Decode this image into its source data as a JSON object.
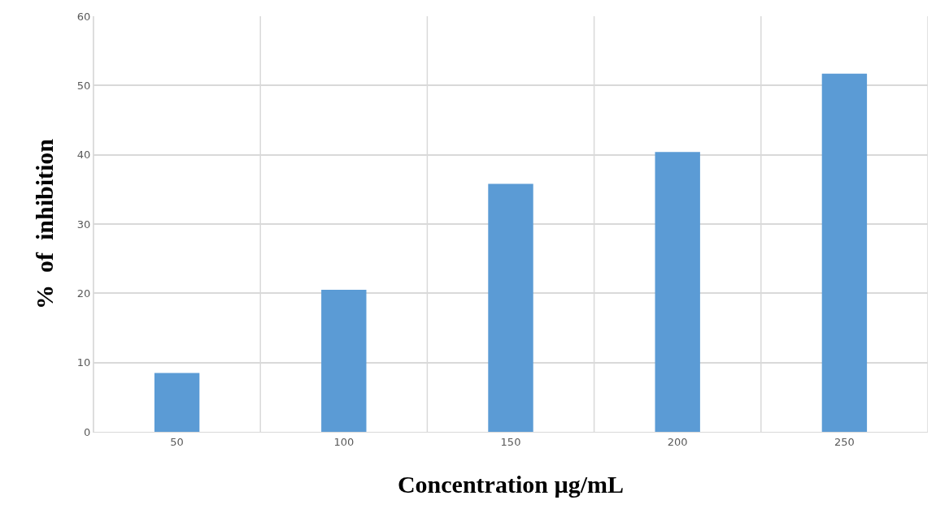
{
  "chart_data": {
    "type": "bar",
    "xlabel": "Concentration µg/mL",
    "ylabel": "%  of  inhibition",
    "categories": [
      "50",
      "100",
      "150",
      "200",
      "250"
    ],
    "values": [
      8.5,
      20.5,
      35.8,
      40.4,
      51.7
    ],
    "color": "#5b9bd5",
    "ylim": [
      0,
      60
    ],
    "yticks": [
      0,
      10,
      20,
      30,
      40,
      50,
      60
    ],
    "grid": true
  }
}
